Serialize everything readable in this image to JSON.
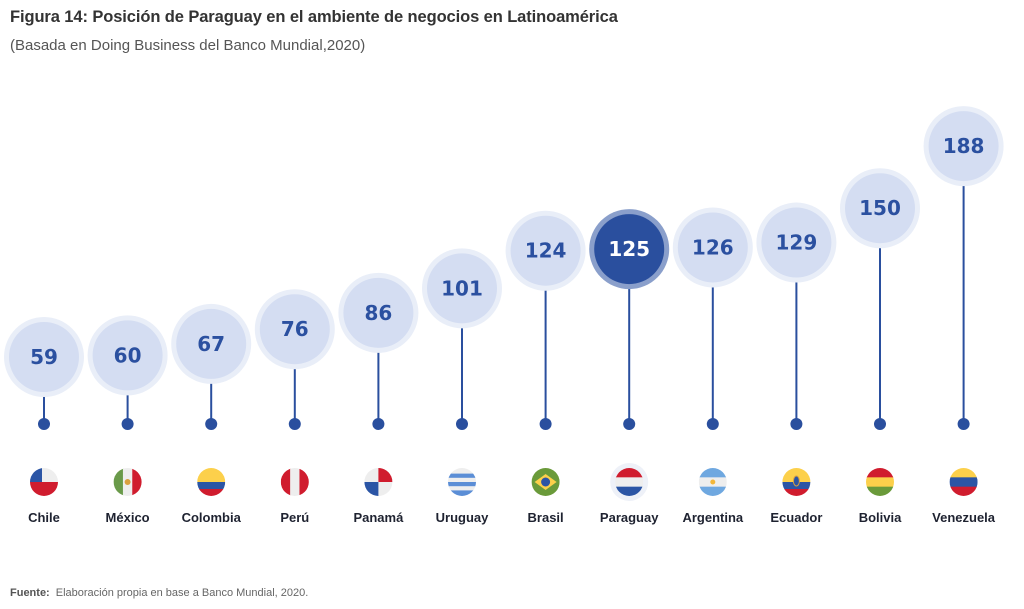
{
  "title": "Figura 14: Posición de Paraguay en el ambiente de negocios en Latinoamérica",
  "subtitle": "(Basada en Doing Business del Banco Mundial,2020)",
  "source": {
    "label": "Fuente:",
    "text": "Elaboración propia en base a Banco Mundial, 2020."
  },
  "colors": {
    "bubble": "#d4ddf2",
    "bubble_ring": "#e9eef8",
    "highlight": "#2a4f9e",
    "highlight_ring": "#8a9fcb",
    "line": "#2a4f9e",
    "value_text": "#2b50a0"
  },
  "chart_data": {
    "type": "lollipop",
    "title": "Figura 14: Posición de Paraguay en el ambiente de negocios en Latinoamérica",
    "subtitle": "(Basada en Doing Business del Banco Mundial,2020)",
    "categories": [
      "Chile",
      "México",
      "Colombia",
      "Perú",
      "Panamá",
      "Uruguay",
      "Brasil",
      "Paraguay",
      "Argentina",
      "Ecuador",
      "Bolivia",
      "Venezuela"
    ],
    "values": [
      59,
      60,
      67,
      76,
      86,
      101,
      124,
      125,
      126,
      129,
      150,
      188
    ],
    "highlight": "Paraguay",
    "flag_icons": [
      "chile-flag-icon",
      "mexico-flag-icon",
      "colombia-flag-icon",
      "peru-flag-icon",
      "panama-flag-icon",
      "uruguay-flag-icon",
      "brazil-flag-icon",
      "paraguay-flag-icon",
      "argentina-flag-icon",
      "ecuador-flag-icon",
      "bolivia-flag-icon",
      "venezuela-flag-icon"
    ],
    "grid": false
  }
}
